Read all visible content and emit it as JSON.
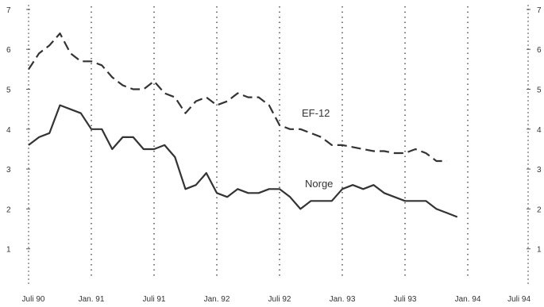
{
  "chart_data": {
    "type": "line",
    "title": "",
    "xlabel": "",
    "ylabel": "",
    "ylim": [
      0,
      7
    ],
    "y_ticks": [
      1,
      2,
      3,
      4,
      5,
      6,
      7
    ],
    "right_y_ticks": [
      "1",
      "2",
      "3",
      "4",
      "5",
      "6",
      "7"
    ],
    "x_ticks": [
      "Juli 90",
      "Jan. 91",
      "Juli 91",
      "Jan. 92",
      "Juli 92",
      "Jan. 93",
      "Juli 93",
      "Jan. 94",
      "Juli 94"
    ],
    "grid": "vertical dotted",
    "months_per_tick": 6,
    "series": [
      {
        "name": "EF-12",
        "style": "dashed",
        "color": "#333333",
        "values": [
          5.5,
          5.9,
          6.1,
          6.4,
          5.9,
          5.7,
          5.7,
          5.6,
          5.3,
          5.1,
          5.0,
          5.0,
          5.2,
          4.9,
          4.8,
          4.4,
          4.7,
          4.8,
          4.6,
          4.7,
          4.9,
          4.8,
          4.8,
          4.6,
          4.1,
          4.0,
          4.0,
          3.9,
          3.8,
          3.6,
          3.6,
          3.55,
          3.5,
          3.45,
          3.45,
          3.4,
          3.4,
          3.5,
          3.4,
          3.2,
          3.2
        ]
      },
      {
        "name": "Norge",
        "style": "solid",
        "color": "#333333",
        "values": [
          3.6,
          3.8,
          3.9,
          4.6,
          4.5,
          4.4,
          4.0,
          4.0,
          3.5,
          3.8,
          3.8,
          3.5,
          3.5,
          3.6,
          3.3,
          2.5,
          2.6,
          2.9,
          2.4,
          2.3,
          2.5,
          2.4,
          2.4,
          2.5,
          2.5,
          2.3,
          2.0,
          2.2,
          2.2,
          2.2,
          2.5,
          2.6,
          2.5,
          2.6,
          2.4,
          2.3,
          2.2,
          2.2,
          2.2,
          2.0,
          1.9,
          1.8
        ]
      }
    ]
  }
}
